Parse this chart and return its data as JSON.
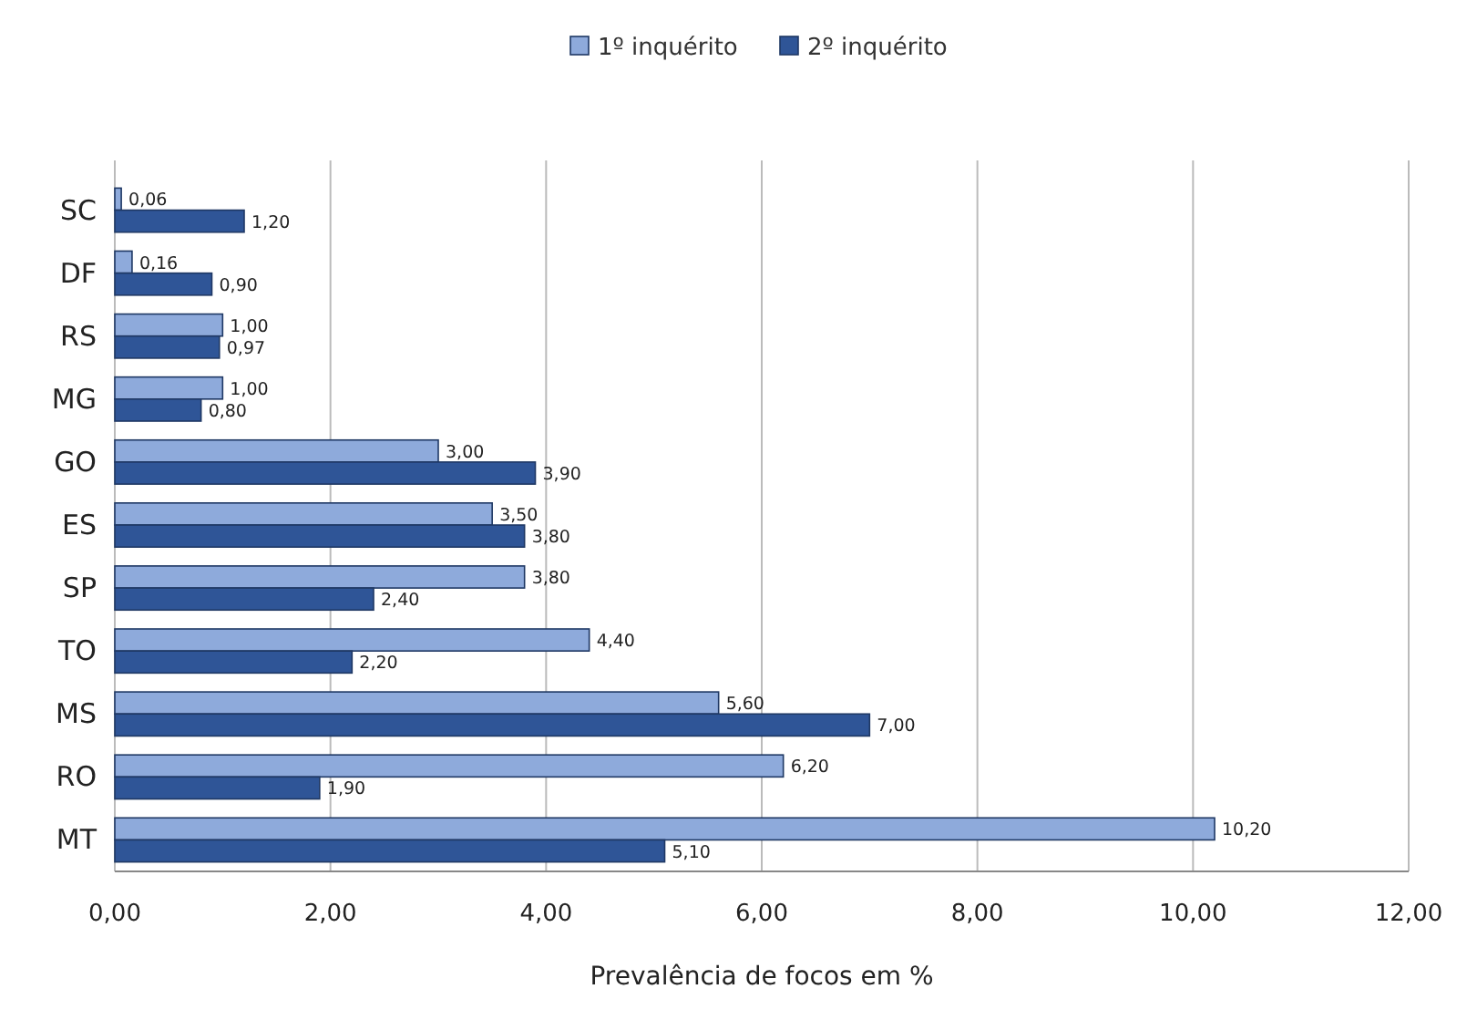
{
  "chart_data": {
    "type": "bar",
    "orientation": "horizontal",
    "xlabel": "Prevalência de focos em %",
    "categories": [
      "SC",
      "DF",
      "RS",
      "MG",
      "GO",
      "ES",
      "SP",
      "TO",
      "MS",
      "RO",
      "MT"
    ],
    "series": [
      {
        "name": "1º inquérito",
        "color": "#8eaadb",
        "values": [
          0.06,
          0.16,
          1.0,
          1.0,
          3.0,
          3.5,
          3.8,
          4.4,
          5.6,
          6.2,
          10.2
        ],
        "value_labels": [
          "0,06",
          "0,16",
          "1,00",
          "1,00",
          "3,00",
          "3,50",
          "3,80",
          "4,40",
          "5,60",
          "6,20",
          "10,20"
        ]
      },
      {
        "name": "2º inquérito",
        "color": "#2f5597",
        "values": [
          1.2,
          0.9,
          0.97,
          0.8,
          3.9,
          3.8,
          2.4,
          2.2,
          7.0,
          1.9,
          5.1
        ],
        "value_labels": [
          "1,20",
          "0,90",
          "0,97",
          "0,80",
          "3,90",
          "3,80",
          "2,40",
          "2,20",
          "7,00",
          "1,90",
          "5,10"
        ]
      }
    ],
    "xlim": [
      0,
      12
    ],
    "xticks": [
      {
        "value": 0,
        "label": "0,00"
      },
      {
        "value": 2,
        "label": "2,00"
      },
      {
        "value": 4,
        "label": "4,00"
      },
      {
        "value": 6,
        "label": "6,00"
      },
      {
        "value": 8,
        "label": "8,00"
      },
      {
        "value": 10,
        "label": "10,00"
      },
      {
        "value": 12,
        "label": "12,00"
      }
    ],
    "grid": "x",
    "legend": "top"
  }
}
